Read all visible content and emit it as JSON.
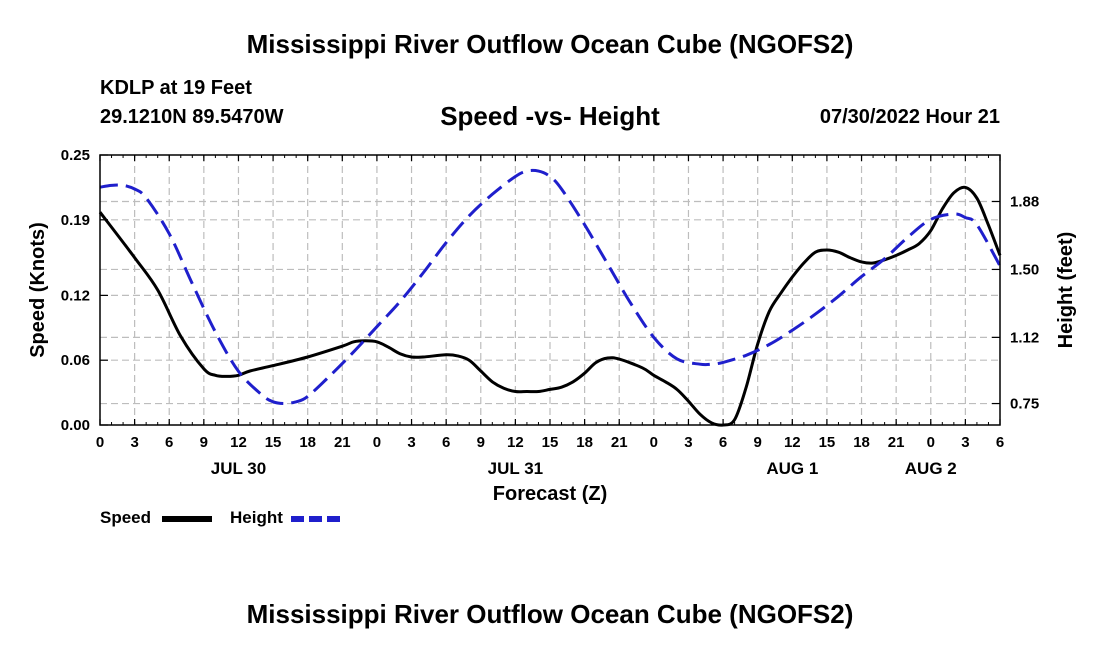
{
  "header": {
    "title": "Mississippi River Outflow Ocean Cube (NGOFS2)",
    "station": "KDLP at 19 Feet",
    "coords": "29.1210N  89.5470W",
    "subtitle": "Speed -vs- Height",
    "datetime": "07/30/2022 Hour 21"
  },
  "footer": {
    "title": "Mississippi River Outflow Ocean Cube (NGOFS2)"
  },
  "colors": {
    "speed": "#000000",
    "height": "#1f1fcc",
    "grid": "#bdbdbd"
  },
  "chart_data": {
    "type": "line",
    "xlabel": "Forecast (Z)",
    "ylabel": "Speed (Knots)",
    "y2label": "Height (feet)",
    "x_range": [
      0,
      78
    ],
    "ylim": [
      0,
      0.25
    ],
    "y2lim": [
      0.63,
      2.14
    ],
    "y_ticks": [
      0.0,
      0.06,
      0.12,
      0.19,
      0.25
    ],
    "y_tick_labels": [
      "0.00",
      "0.06",
      "0.12",
      "0.19",
      "0.25"
    ],
    "y2_ticks": [
      0.75,
      1.12,
      1.5,
      1.88
    ],
    "y2_tick_labels": [
      "0.75",
      "1.12",
      "1.50",
      "1.88"
    ],
    "x_tick_labels": [
      "0",
      "3",
      "6",
      "9",
      "12",
      "15",
      "18",
      "21",
      "0",
      "3",
      "6",
      "9",
      "12",
      "15",
      "18",
      "21",
      "0",
      "3",
      "6",
      "9",
      "12",
      "15",
      "18",
      "21",
      "0",
      "3",
      "6"
    ],
    "date_labels": [
      {
        "x": 12,
        "label": "JUL 30"
      },
      {
        "x": 36,
        "label": "JUL 31"
      },
      {
        "x": 60,
        "label": "AUG 1"
      },
      {
        "x": 72,
        "label": "AUG 2"
      }
    ],
    "grid": true,
    "series": [
      {
        "name": "Speed",
        "axis": "left",
        "dash": "solid",
        "x": [
          0,
          3,
          5,
          7,
          9,
          10,
          11,
          12,
          13,
          15,
          18,
          21,
          22,
          23,
          24,
          25,
          26,
          27,
          28,
          30,
          31,
          32,
          33,
          34,
          35,
          36,
          37,
          38,
          39,
          40,
          41,
          42,
          43,
          44,
          45,
          47,
          48,
          49,
          50,
          51,
          52,
          53,
          54,
          55,
          56,
          57,
          58,
          59,
          60,
          61,
          62,
          63,
          64,
          65,
          66,
          67,
          68,
          69,
          70,
          71,
          72,
          73,
          74,
          75,
          76,
          77,
          78
        ],
        "values": [
          0.197,
          0.155,
          0.125,
          0.082,
          0.052,
          0.046,
          0.045,
          0.046,
          0.05,
          0.055,
          0.063,
          0.073,
          0.077,
          0.078,
          0.077,
          0.072,
          0.066,
          0.063,
          0.063,
          0.065,
          0.064,
          0.06,
          0.05,
          0.04,
          0.034,
          0.031,
          0.031,
          0.031,
          0.033,
          0.035,
          0.04,
          0.048,
          0.058,
          0.062,
          0.061,
          0.053,
          0.046,
          0.04,
          0.033,
          0.022,
          0.01,
          0.002,
          0.0,
          0.005,
          0.035,
          0.075,
          0.105,
          0.122,
          0.137,
          0.15,
          0.16,
          0.162,
          0.16,
          0.155,
          0.151,
          0.15,
          0.153,
          0.157,
          0.162,
          0.168,
          0.18,
          0.2,
          0.215,
          0.22,
          0.21,
          0.185,
          0.157
        ]
      },
      {
        "name": "Height",
        "axis": "right",
        "dash": "dashed",
        "x": [
          0,
          1,
          2,
          3,
          4,
          6,
          8,
          10,
          12,
          14,
          15,
          16,
          17,
          18,
          20,
          22,
          24,
          26,
          28,
          30,
          32,
          34,
          36,
          37,
          38,
          39,
          40,
          42,
          44,
          46,
          48,
          50,
          52,
          53,
          54,
          56,
          58,
          60,
          62,
          64,
          66,
          68,
          70,
          72,
          74,
          75,
          76,
          78
        ],
        "values": [
          1.96,
          1.97,
          1.97,
          1.95,
          1.9,
          1.7,
          1.42,
          1.15,
          0.93,
          0.8,
          0.76,
          0.75,
          0.76,
          0.79,
          0.91,
          1.04,
          1.18,
          1.32,
          1.48,
          1.65,
          1.8,
          1.92,
          2.02,
          2.05,
          2.05,
          2.02,
          1.95,
          1.75,
          1.53,
          1.31,
          1.12,
          1.0,
          0.97,
          0.97,
          0.98,
          1.02,
          1.08,
          1.16,
          1.25,
          1.35,
          1.46,
          1.56,
          1.68,
          1.78,
          1.81,
          1.79,
          1.75,
          1.52
        ]
      }
    ]
  },
  "legend": {
    "speed": "Speed",
    "height": "Height"
  }
}
